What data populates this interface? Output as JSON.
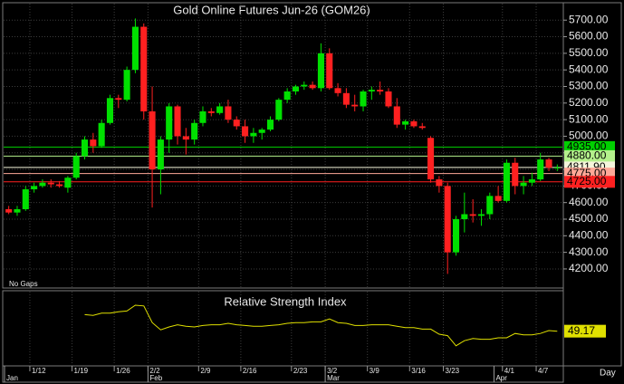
{
  "chart_data": {
    "type": "candlestick",
    "title": "Gold Online Futures Jun-26 (GOM26)",
    "note": "No Gaps",
    "x_unit": "Day",
    "grid": true,
    "up_color": "#00e000",
    "down_color": "#ff2020",
    "title_color": "#ffff00",
    "categories": [
      null,
      null,
      null,
      "1/12",
      null,
      null,
      null,
      null,
      "1/19",
      null,
      null,
      null,
      null,
      "1/26",
      null,
      null,
      null,
      "2/2",
      null,
      null,
      null,
      null,
      null,
      "2/9",
      null,
      null,
      null,
      null,
      "2/16",
      null,
      null,
      null,
      null,
      null,
      "2/23",
      null,
      null,
      null,
      "3/2",
      null,
      null,
      null,
      null,
      "3/9",
      null,
      null,
      null,
      null,
      "3/16",
      null,
      null,
      null,
      "3/23",
      null,
      null,
      null,
      null,
      null,
      null,
      "4/1",
      null,
      null,
      null,
      "4/7",
      null,
      null
    ],
    "months": [
      "Jan",
      null,
      null,
      null,
      null,
      null,
      null,
      null,
      null,
      null,
      null,
      null,
      null,
      null,
      null,
      null,
      null,
      "Feb",
      null,
      null,
      null,
      null,
      null,
      null,
      null,
      null,
      null,
      null,
      null,
      null,
      null,
      null,
      null,
      null,
      null,
      null,
      null,
      null,
      "Mar",
      null,
      null,
      null,
      null,
      null,
      null,
      null,
      null,
      null,
      null,
      null,
      null,
      null,
      null,
      null,
      null,
      null,
      null,
      null,
      "Apr",
      null,
      null,
      null,
      null,
      null,
      null
    ],
    "open": [
      4560,
      4540,
      4560,
      4680,
      4700,
      4720,
      4710,
      4690,
      4750,
      4880,
      4980,
      4940,
      5080,
      5230,
      5220,
      5400,
      5660,
      5150,
      4800,
      4980,
      5180,
      5000,
      4980,
      5080,
      5150,
      5140,
      5180,
      5100,
      5060,
      5000,
      5020,
      5040,
      5100,
      5220,
      5270,
      5300,
      5310,
      5290,
      5500,
      5290,
      5260,
      5190,
      5180,
      5270,
      5280,
      5270,
      5180,
      5070,
      5090,
      5060,
      4990,
      4740,
      4700,
      4300,
      4500,
      4530,
      4520,
      4530,
      4640,
      4610,
      4840,
      4700,
      4720,
      4740,
      4860,
      4810
    ],
    "high": [
      4580,
      4580,
      4700,
      4720,
      4740,
      4740,
      4730,
      4760,
      4900,
      5000,
      5020,
      5100,
      5250,
      5250,
      5420,
      5710,
      5680,
      5300,
      5000,
      5200,
      5190,
      5050,
      5100,
      5180,
      5170,
      5200,
      5220,
      5120,
      5100,
      5050,
      5050,
      5120,
      5230,
      5290,
      5310,
      5330,
      5330,
      5560,
      5530,
      5320,
      5290,
      5250,
      5280,
      5300,
      5330,
      5290,
      5230,
      5100,
      5100,
      5080,
      5000,
      4760,
      4720,
      4520,
      4660,
      4620,
      4560,
      4660,
      4700,
      4860,
      4870,
      4760,
      4780,
      4900,
      4870,
      4830
    ],
    "low": [
      4530,
      4520,
      4550,
      4660,
      4690,
      4690,
      4690,
      4660,
      4740,
      4860,
      4900,
      4930,
      5070,
      5170,
      5210,
      5380,
      5100,
      4570,
      4650,
      4900,
      4950,
      4890,
      4950,
      5060,
      5120,
      5130,
      5080,
      5040,
      4960,
      4960,
      4980,
      5030,
      5090,
      5200,
      5250,
      5280,
      5280,
      5270,
      5280,
      5240,
      5170,
      5150,
      5150,
      5220,
      5250,
      5170,
      5050,
      5040,
      5050,
      5040,
      4720,
      4660,
      4170,
      4280,
      4420,
      4480,
      4460,
      4500,
      4600,
      4600,
      4650,
      4650,
      4700,
      4730,
      4790,
      4790
    ],
    "close": [
      4540,
      4560,
      4680,
      4700,
      4720,
      4710,
      4700,
      4750,
      4880,
      4980,
      4940,
      5080,
      5230,
      5220,
      5400,
      5660,
      5150,
      4800,
      4980,
      5180,
      5000,
      4980,
      5080,
      5150,
      5140,
      5180,
      5100,
      5060,
      5000,
      5020,
      5040,
      5100,
      5220,
      5270,
      5300,
      5310,
      5290,
      5500,
      5290,
      5260,
      5190,
      5180,
      5270,
      5280,
      5270,
      5180,
      5070,
      5090,
      5060,
      5050,
      4740,
      4700,
      4300,
      4500,
      4530,
      4520,
      4530,
      4640,
      4610,
      4840,
      4700,
      4720,
      4740,
      4860,
      4810,
      4811.9
    ],
    "ylim": [
      4085,
      5805
    ],
    "yticks": [
      {
        "value": 4200,
        "label": "4200.00"
      },
      {
        "value": 4300,
        "label": "4300.00"
      },
      {
        "value": 4400,
        "label": "4400.00"
      },
      {
        "value": 4500,
        "label": "4500.00"
      },
      {
        "value": 4600,
        "label": "4600.00"
      },
      {
        "value": 4700,
        "label": "4700.00"
      },
      {
        "value": 4800,
        "label": "4800.00"
      },
      {
        "value": 4900,
        "label": "4900.00"
      },
      {
        "value": 5000,
        "label": "5000.00"
      },
      {
        "value": 5100,
        "label": "5100.00"
      },
      {
        "value": 5200,
        "label": "5200.00"
      },
      {
        "value": 5300,
        "label": "5300.00"
      },
      {
        "value": 5400,
        "label": "5400.00"
      },
      {
        "value": 5500,
        "label": "5500.00"
      },
      {
        "value": 5600,
        "label": "5600.00"
      },
      {
        "value": 5700,
        "label": "5700.00"
      }
    ],
    "levels": [
      {
        "value": 4935,
        "label": "4935.00",
        "color": "#00d000"
      },
      {
        "value": 4880,
        "label": "4880.00",
        "color": "#b4f08c"
      },
      {
        "value": 4811.9,
        "label": "4811.90",
        "color": "#f5f5dc"
      },
      {
        "value": 4775,
        "label": "4775.00",
        "color": "#ffa898"
      },
      {
        "value": 4725,
        "label": "4725.00",
        "color": "#ff2020"
      }
    ],
    "rsi": {
      "title": "Relative Strength Index",
      "color": "#e0e000",
      "ylim": [
        0,
        100
      ],
      "values": [
        null,
        null,
        null,
        null,
        null,
        null,
        null,
        null,
        null,
        72,
        71,
        74,
        74,
        76,
        77,
        85,
        84,
        61,
        51,
        55,
        58,
        56,
        55,
        57,
        58,
        58,
        60,
        58,
        57,
        56,
        56,
        57,
        58,
        60,
        61,
        61,
        62,
        62,
        66,
        61,
        60,
        57,
        57,
        58,
        58,
        58,
        56,
        54,
        54,
        52,
        52,
        45,
        43,
        29,
        36,
        39,
        38,
        38,
        40,
        40,
        46,
        44,
        44,
        46,
        50,
        49.17
      ]
    }
  }
}
